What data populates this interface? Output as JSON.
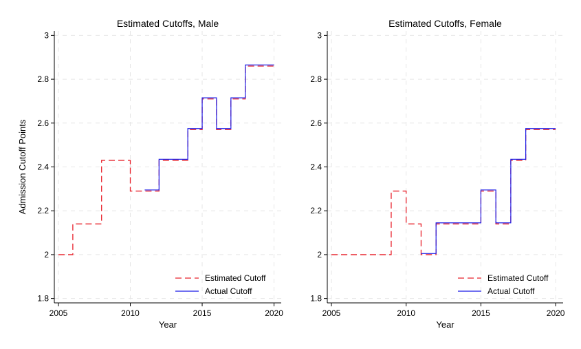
{
  "chart_data": [
    {
      "type": "line",
      "title": "Estimated Cutoffs, Male",
      "xlabel": "Year",
      "ylabel": "Admission Cutoff Points",
      "xlim": [
        2005,
        2020
      ],
      "ylim": [
        1.78,
        3.02
      ],
      "xticks": [
        2005,
        2010,
        2015,
        2020
      ],
      "yticks": [
        1.8,
        2,
        2.2,
        2.4,
        2.6,
        2.8,
        3
      ],
      "grid": true,
      "legend_position": "bottom-right",
      "series": [
        {
          "name": "Estimated Cutoff",
          "color": "#e8202a",
          "dash": "dashed",
          "step": true,
          "x": [
            2005,
            2006,
            2007,
            2008,
            2009,
            2010,
            2011,
            2012,
            2013,
            2014,
            2015,
            2016,
            2017,
            2018,
            2019
          ],
          "values": [
            2.0,
            2.14,
            2.14,
            2.43,
            2.43,
            2.29,
            2.29,
            2.43,
            2.43,
            2.57,
            2.71,
            2.57,
            2.71,
            2.86,
            2.86
          ]
        },
        {
          "name": "Actual Cutoff",
          "color": "#1a1ae6",
          "dash": "solid",
          "step": true,
          "x": [
            2011,
            2012,
            2013,
            2014,
            2015,
            2016,
            2017,
            2018,
            2019
          ],
          "values": [
            2.295,
            2.435,
            2.435,
            2.575,
            2.715,
            2.575,
            2.715,
            2.865,
            2.865
          ]
        }
      ]
    },
    {
      "type": "line",
      "title": "Estimated Cutoffs, Female",
      "xlabel": "Year",
      "ylabel": "",
      "xlim": [
        2005,
        2020
      ],
      "ylim": [
        1.78,
        3.02
      ],
      "xticks": [
        2005,
        2010,
        2015,
        2020
      ],
      "yticks": [
        1.8,
        2,
        2.2,
        2.4,
        2.6,
        2.8,
        3
      ],
      "grid": true,
      "legend_position": "bottom-right",
      "series": [
        {
          "name": "Estimated Cutoff",
          "color": "#e8202a",
          "dash": "dashed",
          "step": true,
          "x": [
            2005,
            2006,
            2007,
            2008,
            2009,
            2010,
            2011,
            2012,
            2013,
            2014,
            2015,
            2016,
            2017,
            2018,
            2019
          ],
          "values": [
            2.0,
            2.0,
            2.0,
            2.0,
            2.29,
            2.14,
            2.0,
            2.14,
            2.14,
            2.14,
            2.29,
            2.14,
            2.43,
            2.57,
            2.57
          ]
        },
        {
          "name": "Actual Cutoff",
          "color": "#1a1ae6",
          "dash": "solid",
          "step": true,
          "x": [
            2011,
            2012,
            2013,
            2014,
            2015,
            2016,
            2017,
            2018,
            2019
          ],
          "values": [
            2.005,
            2.145,
            2.145,
            2.145,
            2.295,
            2.145,
            2.435,
            2.575,
            2.575
          ]
        }
      ]
    }
  ]
}
